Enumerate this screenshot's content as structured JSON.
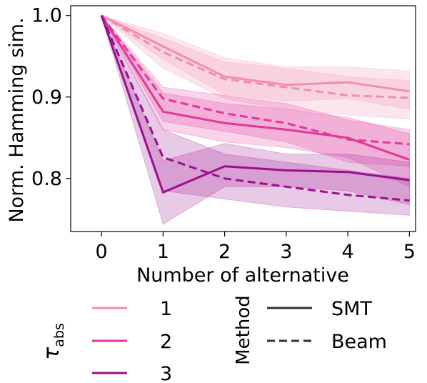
{
  "chart_data": {
    "type": "line",
    "title": "",
    "xlabel": "Number of alternative",
    "ylabel": "Norm. Hamming sim.",
    "x": [
      0,
      1,
      2,
      3,
      4,
      5
    ],
    "xticks": [
      "0",
      "1",
      "2",
      "3",
      "4",
      "5"
    ],
    "yticks": [
      "0.8",
      "0.9",
      "1.0"
    ],
    "xlim": [
      -0.5,
      5.1
    ],
    "ylim": [
      0.735,
      1.012
    ],
    "grid": false,
    "series": [
      {
        "group": "1",
        "method": "SMT",
        "color": "#f28cb0",
        "style": "solid",
        "values": [
          1.0,
          0.962,
          0.925,
          0.915,
          0.918,
          0.907
        ],
        "lower": [
          1.0,
          0.946,
          0.903,
          0.895,
          0.898,
          0.885
        ],
        "upper": [
          1.0,
          0.978,
          0.948,
          0.937,
          0.937,
          0.932
        ]
      },
      {
        "group": "1",
        "method": "Beam",
        "color": "#f28cb0",
        "style": "dashed",
        "values": [
          1.0,
          0.955,
          0.922,
          0.912,
          0.902,
          0.899
        ],
        "lower": [
          1.0,
          0.935,
          0.898,
          0.885,
          0.878,
          0.873
        ],
        "upper": [
          1.0,
          0.972,
          0.943,
          0.935,
          0.925,
          0.92
        ]
      },
      {
        "group": "2",
        "method": "SMT",
        "color": "#e1379a",
        "style": "solid",
        "values": [
          1.0,
          0.882,
          0.868,
          0.86,
          0.85,
          0.823
        ],
        "lower": [
          1.0,
          0.86,
          0.845,
          0.838,
          0.826,
          0.79
        ],
        "upper": [
          1.0,
          0.905,
          0.892,
          0.885,
          0.875,
          0.855
        ]
      },
      {
        "group": "2",
        "method": "Beam",
        "color": "#e1379a",
        "style": "dashed",
        "values": [
          1.0,
          0.898,
          0.88,
          0.868,
          0.848,
          0.842
        ],
        "lower": [
          1.0,
          0.87,
          0.858,
          0.845,
          0.82,
          0.815
        ],
        "upper": [
          1.0,
          0.912,
          0.902,
          0.892,
          0.872,
          0.86
        ]
      },
      {
        "group": "3",
        "method": "SMT",
        "color": "#9b0f8e",
        "style": "solid",
        "values": [
          1.0,
          0.783,
          0.815,
          0.81,
          0.808,
          0.798
        ],
        "lower": [
          1.0,
          0.744,
          0.79,
          0.79,
          0.785,
          0.768
        ],
        "upper": [
          1.0,
          0.822,
          0.843,
          0.83,
          0.83,
          0.82
        ]
      },
      {
        "group": "3",
        "method": "Beam",
        "color": "#9b0f8e",
        "style": "dashed",
        "values": [
          1.0,
          0.826,
          0.8,
          0.79,
          0.78,
          0.773
        ],
        "lower": [
          1.0,
          0.785,
          0.775,
          0.765,
          0.76,
          0.755
        ],
        "upper": [
          1.0,
          0.86,
          0.83,
          0.82,
          0.81,
          0.8
        ]
      }
    ],
    "legend": {
      "placement": "bottom",
      "hue_title_main": "τ",
      "hue_title_sub": "abs",
      "hue_entries": [
        {
          "label": "1",
          "color": "#f28cb0"
        },
        {
          "label": "2",
          "color": "#e1379a"
        },
        {
          "label": "3",
          "color": "#9b0f8e"
        }
      ],
      "style_title": "Method",
      "style_color": "#333333",
      "style_entries": [
        {
          "label": "SMT",
          "style": "solid"
        },
        {
          "label": "Beam",
          "style": "dashed"
        }
      ]
    }
  }
}
